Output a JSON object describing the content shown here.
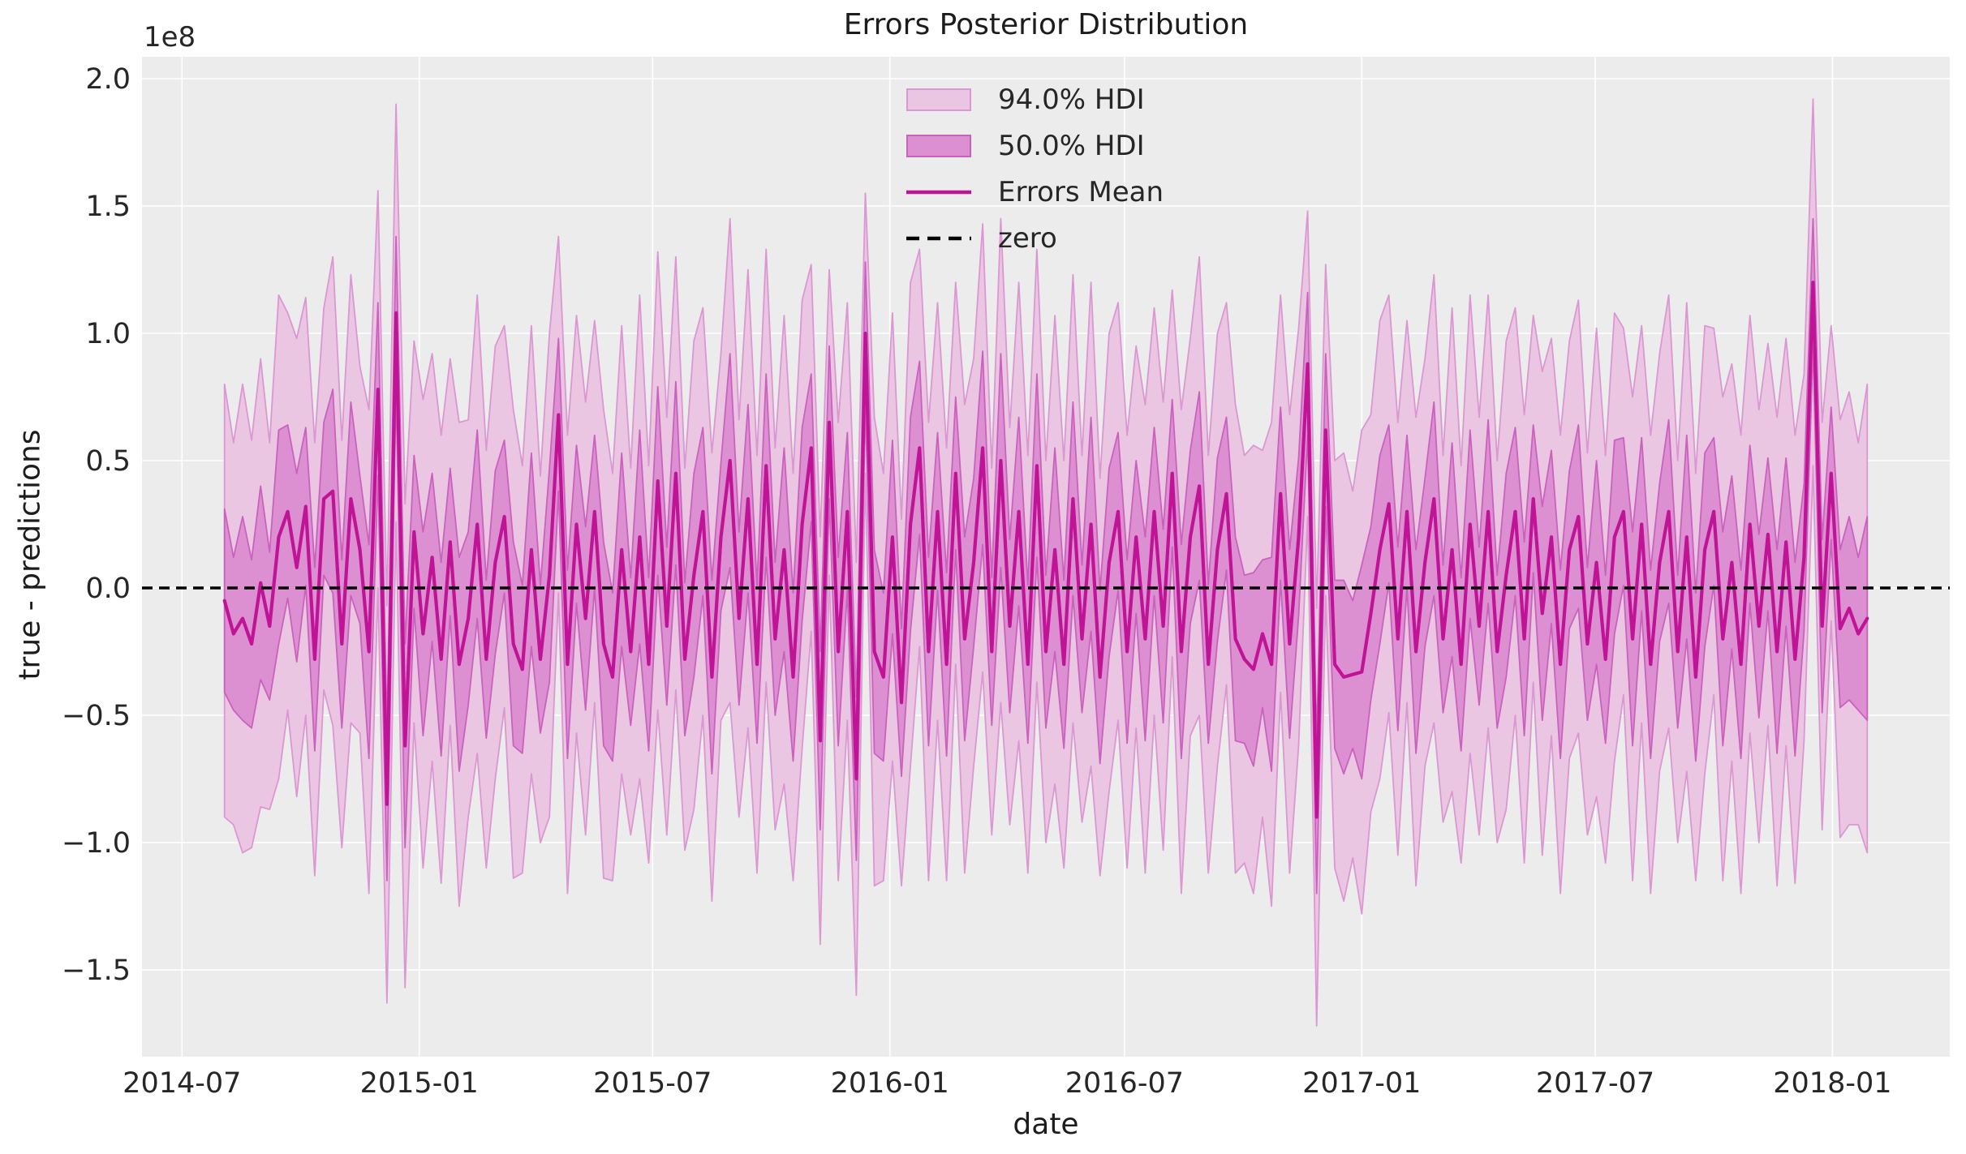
{
  "chart_data": {
    "type": "area",
    "title": "Errors Posterior Distribution",
    "xlabel": "date",
    "ylabel": "true - predictions",
    "y_offset_label": "1e8",
    "grid": true,
    "legend": {
      "position": "upper center",
      "entries": [
        {
          "label": "94.0% HDI",
          "kind": "patch"
        },
        {
          "label": "50.0% HDI",
          "kind": "patch"
        },
        {
          "label": "Errors Mean",
          "kind": "line"
        },
        {
          "label": "zero",
          "kind": "dashed-line"
        }
      ]
    },
    "colors": {
      "axes_bg": "#ececec",
      "grid": "#ffffff",
      "hdi94_fill": "#eac6e3",
      "hdi94_edge": "#db97d2",
      "hdi50_fill": "#dc90d2",
      "hdi50_edge": "#ca62bd",
      "mean_line": "#c01497",
      "zero_line": "#000000",
      "tick_text": "#262626"
    },
    "xlim": [
      "2014-05-31",
      "2018-04-02"
    ],
    "ylim": [
      -1.841,
      2.086
    ],
    "units": "1e8",
    "x_tick_dates": [
      "2014-07-01",
      "2015-01-01",
      "2015-07-01",
      "2016-01-01",
      "2016-07-01",
      "2017-01-01",
      "2017-07-01",
      "2018-01-01"
    ],
    "x_tick_labels": [
      "2014-07",
      "2015-01",
      "2015-07",
      "2016-01",
      "2016-07",
      "2017-01",
      "2017-07",
      "2018-01"
    ],
    "y_ticks": [
      2.0,
      1.5,
      1.0,
      0.5,
      0.0,
      -0.5,
      -1.0,
      -1.5
    ],
    "y_tick_labels": [
      "2.0",
      "1.5",
      "1.0",
      "0.5",
      "0.0",
      "−0.5",
      "−1.0",
      "−1.5"
    ],
    "series": {
      "start_date": "2014-08-03",
      "freq_days": 7,
      "mean": [
        -0.05,
        -0.18,
        -0.12,
        -0.22,
        0.02,
        -0.15,
        0.2,
        0.3,
        0.08,
        0.32,
        -0.28,
        0.35,
        0.38,
        -0.22,
        0.35,
        0.15,
        -0.25,
        0.78,
        -0.85,
        1.08,
        -0.62,
        0.22,
        -0.18,
        0.12,
        -0.28,
        0.18,
        -0.3,
        -0.12,
        0.25,
        -0.28,
        0.1,
        0.28,
        -0.22,
        -0.32,
        0.15,
        -0.28,
        0.05,
        0.68,
        -0.3,
        0.25,
        -0.12,
        0.3,
        -0.22,
        -0.35,
        0.15,
        -0.25,
        0.2,
        -0.3,
        0.42,
        -0.15,
        0.45,
        -0.28,
        0.05,
        0.3,
        -0.35,
        0.2,
        0.5,
        -0.12,
        0.35,
        -0.3,
        0.48,
        -0.2,
        0.15,
        -0.35,
        0.25,
        0.55,
        -0.6,
        0.65,
        -0.25,
        0.3,
        -0.75,
        1.0,
        -0.25,
        -0.35,
        0.2,
        -0.45,
        0.25,
        0.55,
        -0.25,
        0.3,
        -0.3,
        0.45,
        -0.2,
        0.1,
        0.55,
        -0.25,
        0.5,
        -0.15,
        0.3,
        -0.3,
        0.48,
        -0.25,
        0.15,
        -0.3,
        0.35,
        -0.2,
        0.25,
        -0.35,
        0.1,
        0.3,
        -0.25,
        0.2,
        -0.2,
        0.3,
        -0.15,
        0.45,
        -0.25,
        0.2,
        0.4,
        -0.3,
        0.15,
        0.37,
        -0.2,
        -0.28,
        -0.32,
        -0.18,
        -0.3,
        0.37,
        -0.22,
        0.2,
        0.88,
        -0.9,
        0.62,
        -0.3,
        -0.35,
        -0.34,
        -0.33,
        -0.1,
        0.15,
        0.33,
        -0.2,
        0.3,
        -0.25,
        0.1,
        0.35,
        -0.2,
        0.15,
        -0.3,
        0.25,
        -0.15,
        0.3,
        -0.25,
        0.05,
        0.3,
        -0.2,
        0.35,
        -0.1,
        0.2,
        -0.3,
        0.15,
        0.28,
        -0.22,
        0.1,
        -0.28,
        0.2,
        0.3,
        -0.2,
        0.25,
        -0.3,
        0.1,
        0.3,
        -0.25,
        0.2,
        -0.35,
        0.15,
        0.3,
        -0.2,
        0.1,
        -0.3,
        0.25,
        -0.15,
        0.21,
        -0.25,
        0.18,
        -0.28,
        0.12,
        1.2,
        -0.15,
        0.45,
        -0.16,
        -0.08,
        -0.18,
        -0.12
      ],
      "hdi94_half": [
        0.85,
        0.75,
        0.92,
        0.8,
        0.88,
        0.72,
        0.95,
        0.78,
        0.9,
        0.82,
        0.85,
        0.75,
        0.92,
        0.8,
        0.88,
        0.72,
        0.95,
        0.78,
        0.78,
        0.82,
        0.95,
        0.75,
        0.92,
        0.8,
        0.88,
        0.72,
        0.95,
        0.78,
        0.9,
        0.82,
        0.85,
        0.75,
        0.92,
        0.8,
        0.88,
        0.72,
        0.95,
        0.7,
        0.9,
        0.82,
        0.85,
        0.75,
        0.92,
        0.8,
        0.88,
        0.72,
        0.95,
        0.78,
        0.9,
        0.82,
        0.85,
        0.75,
        0.92,
        0.8,
        0.88,
        0.72,
        0.95,
        0.78,
        0.9,
        0.82,
        0.85,
        0.75,
        0.92,
        0.8,
        0.88,
        0.72,
        0.8,
        0.6,
        0.9,
        0.82,
        0.85,
        0.55,
        0.92,
        0.8,
        0.88,
        0.72,
        0.95,
        0.78,
        0.9,
        0.82,
        0.85,
        0.75,
        0.92,
        0.8,
        0.88,
        0.72,
        0.95,
        0.78,
        0.9,
        0.82,
        0.85,
        0.75,
        0.92,
        0.8,
        0.88,
        0.72,
        0.95,
        0.78,
        0.9,
        0.82,
        0.85,
        0.75,
        0.92,
        0.8,
        0.88,
        0.72,
        0.95,
        0.78,
        0.9,
        0.82,
        0.85,
        0.75,
        0.92,
        0.8,
        0.88,
        0.72,
        0.95,
        0.78,
        0.9,
        0.82,
        0.6,
        0.82,
        0.65,
        0.8,
        0.88,
        0.72,
        0.95,
        0.78,
        0.9,
        0.82,
        0.85,
        0.75,
        0.92,
        0.8,
        0.88,
        0.72,
        0.95,
        0.78,
        0.9,
        0.82,
        0.85,
        0.75,
        0.92,
        0.8,
        0.88,
        0.72,
        0.95,
        0.78,
        0.9,
        0.82,
        0.85,
        0.75,
        0.92,
        0.8,
        0.88,
        0.72,
        0.95,
        0.78,
        0.9,
        0.82,
        0.85,
        0.75,
        0.92,
        0.8,
        0.88,
        0.72,
        0.95,
        0.78,
        0.9,
        0.82,
        0.85,
        0.75,
        0.92,
        0.8,
        0.88,
        0.72,
        0.72,
        0.8,
        0.58,
        0.82,
        0.85,
        0.75,
        0.92
      ],
      "hdi50_half": [
        0.36,
        0.3,
        0.4,
        0.33,
        0.38,
        0.29,
        0.42,
        0.34,
        0.37,
        0.31,
        0.36,
        0.3,
        0.4,
        0.33,
        0.38,
        0.29,
        0.42,
        0.34,
        0.3,
        0.3,
        0.4,
        0.3,
        0.4,
        0.33,
        0.38,
        0.29,
        0.42,
        0.34,
        0.37,
        0.31,
        0.36,
        0.3,
        0.4,
        0.33,
        0.38,
        0.29,
        0.42,
        0.3,
        0.37,
        0.31,
        0.36,
        0.3,
        0.4,
        0.33,
        0.38,
        0.29,
        0.42,
        0.34,
        0.37,
        0.31,
        0.36,
        0.3,
        0.4,
        0.33,
        0.38,
        0.29,
        0.42,
        0.34,
        0.37,
        0.31,
        0.36,
        0.3,
        0.4,
        0.33,
        0.38,
        0.29,
        0.35,
        0.3,
        0.37,
        0.31,
        0.32,
        0.28,
        0.4,
        0.33,
        0.38,
        0.29,
        0.42,
        0.34,
        0.37,
        0.31,
        0.36,
        0.3,
        0.4,
        0.33,
        0.38,
        0.29,
        0.42,
        0.34,
        0.37,
        0.31,
        0.36,
        0.3,
        0.4,
        0.33,
        0.38,
        0.29,
        0.42,
        0.34,
        0.37,
        0.31,
        0.36,
        0.3,
        0.4,
        0.33,
        0.38,
        0.29,
        0.42,
        0.34,
        0.37,
        0.31,
        0.36,
        0.3,
        0.4,
        0.33,
        0.38,
        0.29,
        0.42,
        0.34,
        0.37,
        0.31,
        0.28,
        0.3,
        0.3,
        0.33,
        0.38,
        0.29,
        0.42,
        0.34,
        0.37,
        0.31,
        0.36,
        0.3,
        0.4,
        0.33,
        0.38,
        0.29,
        0.42,
        0.34,
        0.37,
        0.31,
        0.36,
        0.3,
        0.4,
        0.33,
        0.38,
        0.29,
        0.42,
        0.34,
        0.37,
        0.31,
        0.36,
        0.3,
        0.4,
        0.33,
        0.38,
        0.29,
        0.42,
        0.34,
        0.37,
        0.31,
        0.36,
        0.3,
        0.4,
        0.33,
        0.38,
        0.29,
        0.42,
        0.34,
        0.37,
        0.31,
        0.36,
        0.3,
        0.4,
        0.33,
        0.38,
        0.29,
        0.25,
        0.34,
        0.26,
        0.31,
        0.36,
        0.3,
        0.4
      ]
    }
  }
}
